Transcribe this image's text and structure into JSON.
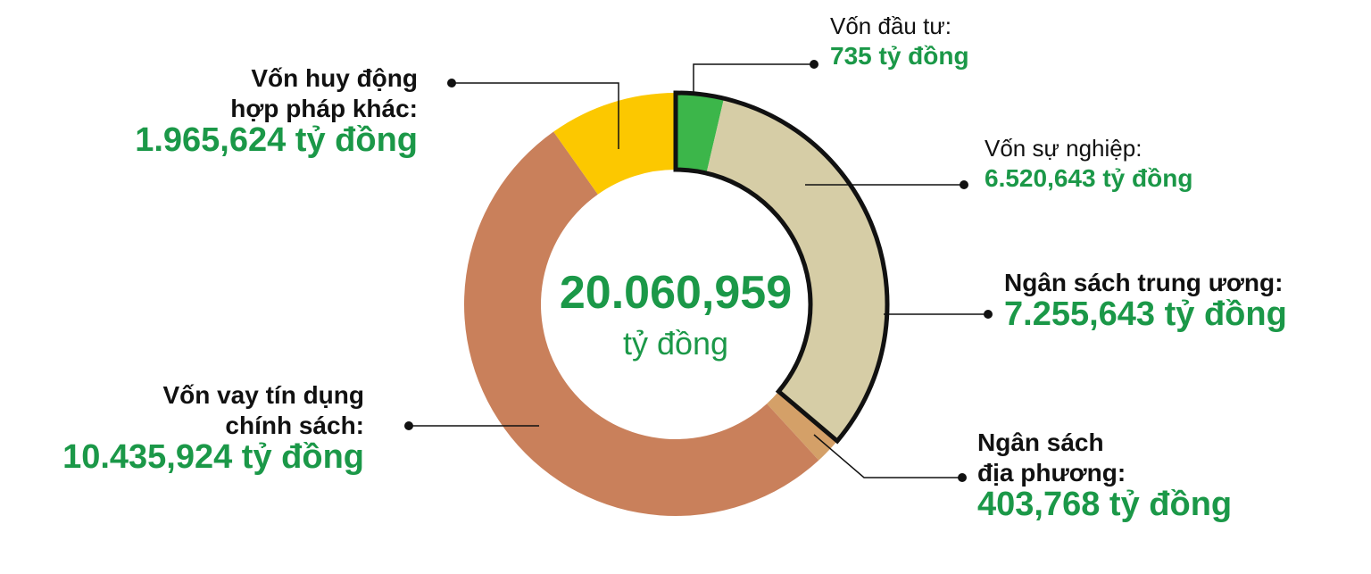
{
  "chart_data": {
    "type": "pie",
    "donut": true,
    "center": {
      "value": "20.060,959",
      "unit": "tỷ đồng"
    },
    "slices": [
      {
        "id": "von-dau-tu",
        "lines": [
          "Vốn đầu tư:"
        ],
        "value_text": "735 tỷ đồng",
        "value": 735,
        "color": "#3cb64a",
        "weight": "normal"
      },
      {
        "id": "von-su-nghiep",
        "lines": [
          "Vốn sự nghiệp:"
        ],
        "value_text": "6.520,643  tỷ đồng",
        "value": 6520.643,
        "color": "#d6cda6",
        "weight": "normal"
      },
      {
        "id": "ngan-sach-dia-phuong",
        "lines": [
          "Ngân sách",
          "địa phương:"
        ],
        "value_text": "403,768 tỷ đồng",
        "value": 403.768,
        "color": "#d4a068",
        "weight": "bold"
      },
      {
        "id": "von-vay-tin-dung",
        "lines": [
          "Vốn vay tín dụng",
          "chính sách:"
        ],
        "value_text": "10.435,924 tỷ đồng",
        "value": 10435.924,
        "color": "#c9805b",
        "weight": "bold"
      },
      {
        "id": "von-huy-dong",
        "lines": [
          "Vốn huy động",
          "hợp pháp khác:"
        ],
        "value_text": "1.965,624 tỷ đồng",
        "value": 1965.624,
        "color": "#fcc800",
        "weight": "bold"
      }
    ],
    "group": {
      "id": "ngan-sach-trung-uong",
      "lines": [
        "Ngân sách trung ương:"
      ],
      "value_text": "7.255,643 tỷ đồng",
      "value": 7255.643,
      "members": [
        "von-dau-tu",
        "von-su-nghiep"
      ],
      "weight": "bold"
    },
    "colors": {
      "value_text": "#1b9848",
      "outline": "#111111",
      "leader": "#111111"
    }
  }
}
